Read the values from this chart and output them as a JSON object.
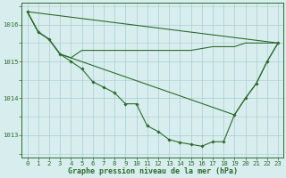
{
  "xlabel": "Graphe pression niveau de la mer (hPa)",
  "xlim": [
    -0.5,
    23.5
  ],
  "ylim": [
    1012.4,
    1016.6
  ],
  "yticks": [
    1013,
    1014,
    1015,
    1016
  ],
  "xticks": [
    0,
    1,
    2,
    3,
    4,
    5,
    6,
    7,
    8,
    9,
    10,
    11,
    12,
    13,
    14,
    15,
    16,
    17,
    18,
    19,
    20,
    21,
    22,
    23
  ],
  "bg_color": "#d8eeee",
  "grid_color": "#aacccc",
  "line_color": "#2d6a2d",
  "marker": "D",
  "markersize": 1.8,
  "linewidth": 0.8,
  "series": [
    {
      "x": [
        0,
        1,
        2,
        3,
        4,
        5,
        6,
        7,
        8,
        9,
        10,
        11,
        12,
        13,
        14,
        15,
        16,
        17,
        18,
        19,
        20,
        21,
        22,
        23
      ],
      "y": [
        1016.35,
        1015.8,
        1015.6,
        1015.2,
        1015.0,
        1014.8,
        1014.45,
        1014.3,
        1014.15,
        1013.85,
        1013.85,
        1013.25,
        1013.1,
        1012.88,
        1012.8,
        1012.75,
        1012.7,
        1012.82,
        1012.82,
        1013.55,
        1014.0,
        1014.4,
        1015.0,
        1015.5
      ],
      "has_marker": true
    },
    {
      "x": [
        0,
        1,
        2,
        3,
        4,
        5,
        6,
        7,
        8,
        9,
        10,
        11,
        12,
        13,
        14,
        15,
        16,
        17,
        18,
        19,
        20,
        21,
        22,
        23
      ],
      "y": [
        1016.35,
        1015.8,
        1015.6,
        1015.2,
        1015.1,
        1015.3,
        1015.3,
        1015.3,
        1015.3,
        1015.3,
        1015.3,
        1015.3,
        1015.3,
        1015.3,
        1015.3,
        1015.3,
        1015.35,
        1015.4,
        1015.4,
        1015.4,
        1015.5,
        1015.5,
        1015.5,
        1015.5
      ],
      "has_marker": false
    },
    {
      "x": [
        0,
        23
      ],
      "y": [
        1016.35,
        1015.5
      ],
      "has_marker": false
    },
    {
      "x": [
        0,
        1,
        2,
        3,
        19,
        20,
        21,
        22,
        23
      ],
      "y": [
        1016.35,
        1015.8,
        1015.6,
        1015.2,
        1013.55,
        1014.0,
        1014.4,
        1015.0,
        1015.5
      ],
      "has_marker": false
    }
  ],
  "font_color": "#2d6a2d",
  "font_size_label": 6.0,
  "font_size_tick": 5.2
}
